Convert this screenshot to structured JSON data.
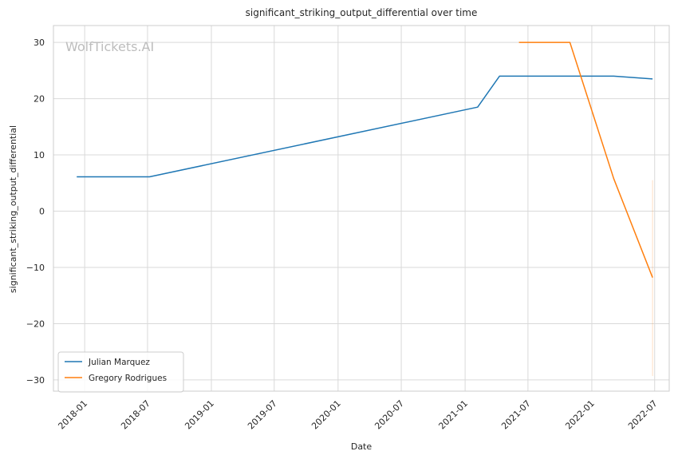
{
  "chart_data": {
    "type": "line",
    "title": "significant_striking_output_differential over time",
    "xlabel": "Date",
    "ylabel": "significant_striking_output_differential",
    "watermark": "WolfTickets.AI",
    "x_ticks": [
      "2018-01",
      "2018-07",
      "2019-01",
      "2019-07",
      "2020-01",
      "2020-07",
      "2021-01",
      "2021-07",
      "2022-01",
      "2022-07"
    ],
    "y_ticks": [
      "30",
      "20",
      "10",
      "0",
      "−10",
      "−20",
      "−30"
    ],
    "y_tick_values": [
      30,
      20,
      10,
      0,
      -10,
      -20,
      -30
    ],
    "xlim": [
      "2017-10-03",
      "2022-08-12"
    ],
    "ylim": [
      -32,
      33
    ],
    "grid": true,
    "legend_position": "lower-left",
    "series": [
      {
        "name": "Julian Marquez",
        "color": "#1f77b4",
        "points": [
          {
            "x": "2017-12-09",
            "y": 6.1
          },
          {
            "x": "2018-07-07",
            "y": 6.1
          },
          {
            "x": "2021-02-06",
            "y": 18.5
          },
          {
            "x": "2021-04-10",
            "y": 24.0
          },
          {
            "x": "2022-03-05",
            "y": 24.0
          },
          {
            "x": "2022-06-25",
            "y": 23.5
          }
        ]
      },
      {
        "name": "Gregory Rodrigues",
        "color": "#ff7f0e",
        "points": [
          {
            "x": "2021-06-05",
            "y": 30.0
          },
          {
            "x": "2021-10-30",
            "y": 30.0
          },
          {
            "x": "2022-03-05",
            "y": 5.8
          },
          {
            "x": "2022-06-25",
            "y": -11.8
          }
        ]
      }
    ],
    "error_band": {
      "x": "2022-06-25",
      "low": -29.3,
      "high": 5.5,
      "color": "#ff7f0e"
    }
  }
}
